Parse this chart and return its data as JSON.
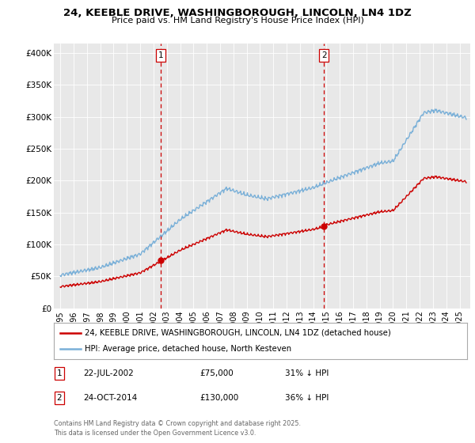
{
  "title_line1": "24, KEEBLE DRIVE, WASHINGBOROUGH, LINCOLN, LN4 1DZ",
  "title_line2": "Price paid vs. HM Land Registry's House Price Index (HPI)",
  "ylabel_ticks": [
    "£0",
    "£50K",
    "£100K",
    "£150K",
    "£200K",
    "£250K",
    "£300K",
    "£350K",
    "£400K"
  ],
  "ytick_vals": [
    0,
    50000,
    100000,
    150000,
    200000,
    250000,
    300000,
    350000,
    400000
  ],
  "ylim": [
    0,
    415000
  ],
  "xlim": [
    1994.5,
    2025.8
  ],
  "sale1": {
    "date_x": 2002.55,
    "price": 75000,
    "label": "1"
  },
  "sale2": {
    "date_x": 2014.81,
    "price": 130000,
    "label": "2"
  },
  "legend_line1": "24, KEEBLE DRIVE, WASHINGBOROUGH, LINCOLN, LN4 1DZ (detached house)",
  "legend_line2": "HPI: Average price, detached house, North Kesteven",
  "footer1": "Contains HM Land Registry data © Crown copyright and database right 2025.",
  "footer2": "This data is licensed under the Open Government Licence v3.0.",
  "table_row1": [
    "1",
    "22-JUL-2002",
    "£75,000",
    "31% ↓ HPI"
  ],
  "table_row2": [
    "2",
    "24-OCT-2014",
    "£130,000",
    "36% ↓ HPI"
  ],
  "hpi_color": "#7ab0d8",
  "sale_color": "#cc0000",
  "vline_color": "#cc0000",
  "bg_color": "#e8e8e8"
}
